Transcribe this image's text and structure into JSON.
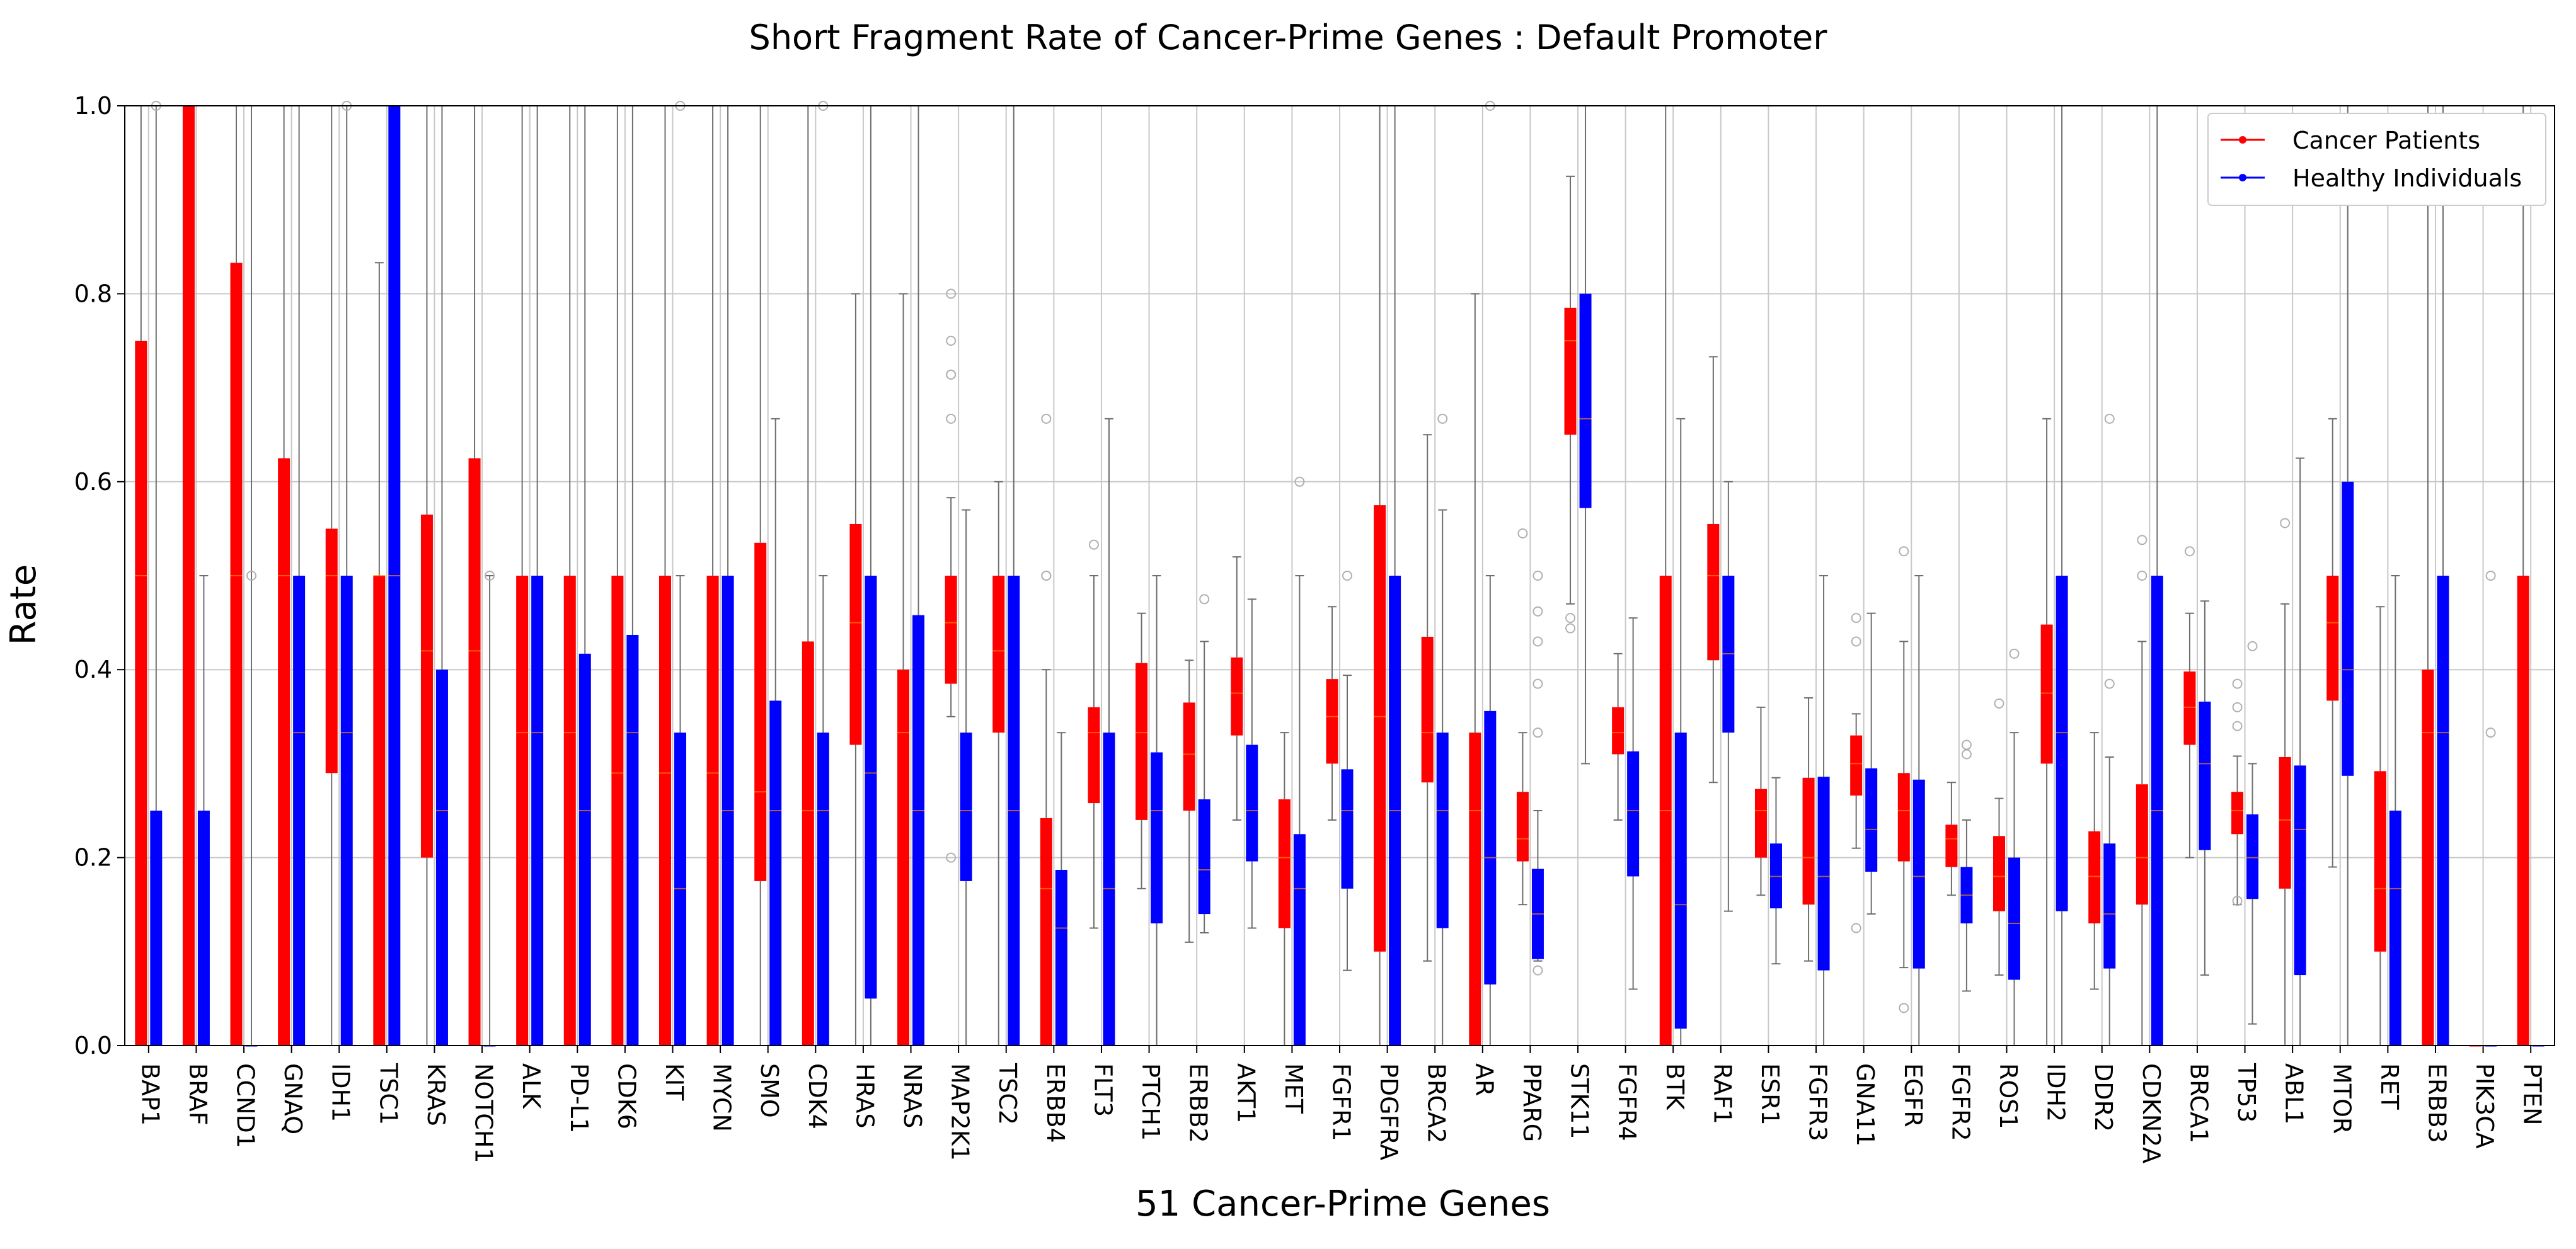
{
  "chart_data": {
    "type": "box",
    "title": "Short Fragment Rate of Cancer-Prime Genes : Default Promoter",
    "xlabel": "51 Cancer-Prime Genes",
    "ylabel": "Rate",
    "ylim": [
      0,
      1.0
    ],
    "yticks": [
      "0.0",
      "0.2",
      "0.4",
      "0.6",
      "0.8",
      "1.0"
    ],
    "grid": true,
    "legend_position": "top-right",
    "series": [
      {
        "name": "Cancer Patients",
        "color": "#ff0000"
      },
      {
        "name": "Healthy Individuals",
        "color": "#0000ff"
      }
    ],
    "categories": [
      "BAP1",
      "BRAF",
      "CCND1",
      "GNAQ",
      "IDH1",
      "TSC1",
      "KRAS",
      "NOTCH1",
      "ALK",
      "PD-L1",
      "CDK6",
      "KIT",
      "MYCN",
      "SMO",
      "CDK4",
      "HRAS",
      "NRAS",
      "MAP2K1",
      "TSC2",
      "ERBB4",
      "FLT3",
      "PTCH1",
      "ERBB2",
      "AKT1",
      "MET",
      "FGFR1",
      "PDGFRA",
      "BRCA2",
      "AR",
      "PPARG",
      "STK11",
      "FGFR4",
      "BTK",
      "RAF1",
      "ESR1",
      "FGFR3",
      "GNA11",
      "EGFR",
      "FGFR2",
      "ROS1",
      "IDH2",
      "DDR2",
      "CDKN2A",
      "BRCA1",
      "TP53",
      "ABL1",
      "MTOR",
      "RET",
      "ERBB3",
      "PIK3CA",
      "PTEN"
    ],
    "boxes": [
      {
        "cancer": [
          0,
          0,
          0.5,
          0.75,
          1.0
        ],
        "healthy": [
          0,
          0,
          0,
          0.25,
          1.0
        ]
      },
      {
        "cancer": [
          0,
          0,
          1.0,
          1.0,
          1.0
        ],
        "healthy": [
          0,
          0,
          0,
          0.25,
          0.5
        ]
      },
      {
        "cancer": [
          0,
          0,
          0.5,
          0.833,
          1.0
        ],
        "healthy": [
          0,
          0,
          0,
          0,
          1.0
        ]
      },
      {
        "cancer": [
          0,
          0,
          0.5,
          0.625,
          1.0
        ],
        "healthy": [
          0,
          0,
          0.333,
          0.5,
          1.0
        ]
      },
      {
        "cancer": [
          0,
          0.29,
          0.5,
          0.55,
          1.0
        ],
        "healthy": [
          0,
          0,
          0.333,
          0.5,
          1.0
        ]
      },
      {
        "cancer": [
          0,
          0,
          0.5,
          0.5,
          0.833
        ],
        "healthy": [
          0,
          0,
          0.5,
          1.0,
          1.0
        ]
      },
      {
        "cancer": [
          0,
          0.2,
          0.42,
          0.565,
          1.0
        ],
        "healthy": [
          0,
          0,
          0.25,
          0.4,
          1.0
        ]
      },
      {
        "cancer": [
          0,
          0,
          0.42,
          0.625,
          1.0
        ],
        "healthy": [
          0,
          0,
          0,
          0,
          0.5
        ]
      },
      {
        "cancer": [
          0,
          0,
          0.333,
          0.5,
          1.0
        ],
        "healthy": [
          0,
          0,
          0.333,
          0.5,
          1.0
        ]
      },
      {
        "cancer": [
          0,
          0,
          0.333,
          0.5,
          1.0
        ],
        "healthy": [
          0,
          0,
          0.25,
          0.417,
          1.0
        ]
      },
      {
        "cancer": [
          0,
          0,
          0.29,
          0.5,
          1.0
        ],
        "healthy": [
          0,
          0,
          0.333,
          0.437,
          1.0
        ]
      },
      {
        "cancer": [
          0,
          0,
          0.29,
          0.5,
          1.0
        ],
        "healthy": [
          0,
          0,
          0.167,
          0.333,
          0.5
        ]
      },
      {
        "cancer": [
          0,
          0,
          0.29,
          0.5,
          1.0
        ],
        "healthy": [
          0,
          0,
          0.25,
          0.5,
          1.0
        ]
      },
      {
        "cancer": [
          0,
          0.175,
          0.27,
          0.535,
          1.0
        ],
        "healthy": [
          0,
          0,
          0.25,
          0.367,
          0.667
        ]
      },
      {
        "cancer": [
          0,
          0,
          0.25,
          0.43,
          1.0
        ],
        "healthy": [
          0,
          0,
          0.25,
          0.333,
          0.5
        ]
      },
      {
        "cancer": [
          0,
          0.32,
          0.45,
          0.555,
          0.8
        ],
        "healthy": [
          0,
          0.05,
          0.29,
          0.5,
          1.0
        ]
      },
      {
        "cancer": [
          0,
          0,
          0.333,
          0.4,
          0.8
        ],
        "healthy": [
          0,
          0,
          0.25,
          0.458,
          1.0
        ]
      },
      {
        "cancer": [
          0.35,
          0.385,
          0.45,
          0.5,
          0.583
        ],
        "healthy": [
          0,
          0.175,
          0.25,
          0.333,
          0.57
        ]
      },
      {
        "cancer": [
          0,
          0.333,
          0.42,
          0.5,
          0.6
        ],
        "healthy": [
          0,
          0,
          0.25,
          0.5,
          1.0
        ]
      },
      {
        "cancer": [
          0,
          0,
          0.167,
          0.242,
          0.4
        ],
        "healthy": [
          0,
          0,
          0.125,
          0.187,
          0.333
        ]
      },
      {
        "cancer": [
          0.125,
          0.258,
          0.333,
          0.36,
          0.5
        ],
        "healthy": [
          0,
          0,
          0.167,
          0.333,
          0.667
        ]
      },
      {
        "cancer": [
          0.167,
          0.24,
          0.333,
          0.407,
          0.46
        ],
        "healthy": [
          0,
          0.13,
          0.25,
          0.312,
          0.5
        ]
      },
      {
        "cancer": [
          0.11,
          0.25,
          0.31,
          0.365,
          0.41
        ],
        "healthy": [
          0.12,
          0.14,
          0.187,
          0.262,
          0.43
        ]
      },
      {
        "cancer": [
          0.24,
          0.33,
          0.375,
          0.413,
          0.52
        ],
        "healthy": [
          0.125,
          0.196,
          0.25,
          0.32,
          0.475
        ]
      },
      {
        "cancer": [
          0,
          0.125,
          0.2,
          0.262,
          0.333
        ],
        "healthy": [
          0,
          0,
          0.167,
          0.225,
          0.5
        ]
      },
      {
        "cancer": [
          0.24,
          0.3,
          0.35,
          0.39,
          0.467
        ],
        "healthy": [
          0.08,
          0.167,
          0.25,
          0.294,
          0.394
        ]
      },
      {
        "cancer": [
          0,
          0.1,
          0.35,
          0.575,
          1.0
        ],
        "healthy": [
          0,
          0,
          0.25,
          0.5,
          1.0
        ]
      },
      {
        "cancer": [
          0.09,
          0.28,
          0.333,
          0.435,
          0.65
        ],
        "healthy": [
          0,
          0.125,
          0.25,
          0.333,
          0.57
        ]
      },
      {
        "cancer": [
          0,
          0,
          0.25,
          0.333,
          0.8
        ],
        "healthy": [
          0,
          0.065,
          0.2,
          0.356,
          0.5
        ]
      },
      {
        "cancer": [
          0.15,
          0.196,
          0.22,
          0.27,
          0.333
        ],
        "healthy": [
          0.09,
          0.092,
          0.14,
          0.188,
          0.25
        ]
      },
      {
        "cancer": [
          0.47,
          0.65,
          0.75,
          0.785,
          0.925
        ],
        "healthy": [
          0.3,
          0.572,
          0.667,
          0.8,
          1.0
        ]
      },
      {
        "cancer": [
          0.24,
          0.31,
          0.333,
          0.36,
          0.417
        ],
        "healthy": [
          0.06,
          0.18,
          0.25,
          0.313,
          0.455
        ]
      },
      {
        "cancer": [
          0,
          0,
          0.25,
          0.5,
          1.0
        ],
        "healthy": [
          0,
          0.018,
          0.15,
          0.333,
          0.667
        ]
      },
      {
        "cancer": [
          0.28,
          0.41,
          0.5,
          0.555,
          0.733
        ],
        "healthy": [
          0.143,
          0.333,
          0.417,
          0.5,
          0.6
        ]
      },
      {
        "cancer": [
          0.16,
          0.2,
          0.25,
          0.273,
          0.36
        ],
        "healthy": [
          0.087,
          0.146,
          0.18,
          0.215,
          0.285
        ]
      },
      {
        "cancer": [
          0.09,
          0.15,
          0.2,
          0.285,
          0.37
        ],
        "healthy": [
          0,
          0.08,
          0.18,
          0.286,
          0.5
        ]
      },
      {
        "cancer": [
          0.21,
          0.266,
          0.3,
          0.33,
          0.353
        ],
        "healthy": [
          0.14,
          0.185,
          0.23,
          0.295,
          0.46
        ]
      },
      {
        "cancer": [
          0.083,
          0.196,
          0.25,
          0.29,
          0.43
        ],
        "healthy": [
          0,
          0.082,
          0.18,
          0.283,
          0.5
        ]
      },
      {
        "cancer": [
          0.16,
          0.19,
          0.22,
          0.235,
          0.28
        ],
        "healthy": [
          0.058,
          0.13,
          0.16,
          0.19,
          0.24
        ]
      },
      {
        "cancer": [
          0.075,
          0.143,
          0.18,
          0.223,
          0.263
        ],
        "healthy": [
          0,
          0.07,
          0.13,
          0.2,
          0.333
        ]
      },
      {
        "cancer": [
          0,
          0.3,
          0.375,
          0.448,
          0.667
        ],
        "healthy": [
          0,
          0.143,
          0.333,
          0.5,
          1.0
        ]
      },
      {
        "cancer": [
          0.06,
          0.13,
          0.18,
          0.228,
          0.333
        ],
        "healthy": [
          0,
          0.082,
          0.14,
          0.215,
          0.307
        ]
      },
      {
        "cancer": [
          0,
          0.15,
          0.2,
          0.278,
          0.43
        ],
        "healthy": [
          0,
          0,
          0.25,
          0.5,
          1.0
        ]
      },
      {
        "cancer": [
          0.2,
          0.32,
          0.36,
          0.398,
          0.46
        ],
        "healthy": [
          0.075,
          0.208,
          0.3,
          0.366,
          0.473
        ]
      },
      {
        "cancer": [
          0.15,
          0.225,
          0.25,
          0.27,
          0.308
        ],
        "healthy": [
          0.023,
          0.156,
          0.2,
          0.246,
          0.3
        ]
      },
      {
        "cancer": [
          0,
          0.167,
          0.24,
          0.307,
          0.47
        ],
        "healthy": [
          0,
          0.075,
          0.23,
          0.298,
          0.625
        ]
      },
      {
        "cancer": [
          0.19,
          0.367,
          0.45,
          0.5,
          0.667
        ],
        "healthy": [
          0,
          0.287,
          0.4,
          0.6,
          1.0
        ]
      },
      {
        "cancer": [
          0,
          0.1,
          0.167,
          0.292,
          0.467
        ],
        "healthy": [
          0,
          0,
          0.167,
          0.25,
          0.5
        ]
      },
      {
        "cancer": [
          0,
          0,
          0.333,
          0.4,
          1.0
        ],
        "healthy": [
          0,
          0,
          0.333,
          0.5,
          1.0
        ]
      },
      {
        "cancer": [
          0,
          0,
          0,
          0,
          0
        ],
        "healthy": [
          0,
          0,
          0,
          0,
          0
        ]
      },
      {
        "cancer": [
          0,
          0,
          0,
          0.5,
          1.0
        ],
        "healthy": [
          0,
          0,
          0,
          0,
          0
        ]
      }
    ],
    "outliers": [
      {
        "category": "BAP1",
        "series": "Healthy Individuals",
        "values": [
          1.0
        ]
      },
      {
        "category": "CCND1",
        "series": "Healthy Individuals",
        "values": [
          0.5
        ]
      },
      {
        "category": "IDH1",
        "series": "Healthy Individuals",
        "values": [
          1.0
        ]
      },
      {
        "category": "NOTCH1",
        "series": "Healthy Individuals",
        "values": [
          0.5
        ]
      },
      {
        "category": "KIT",
        "series": "Healthy Individuals",
        "values": [
          1.0
        ]
      },
      {
        "category": "CDK4",
        "series": "Healthy Individuals",
        "values": [
          1.0
        ]
      },
      {
        "category": "MAP2K1",
        "series": "Cancer Patients",
        "values": [
          0.8,
          0.75,
          0.714,
          0.714,
          0.667,
          0.2
        ]
      },
      {
        "category": "ERBB4",
        "series": "Cancer Patients",
        "values": [
          0.667,
          0.5,
          0.5
        ]
      },
      {
        "category": "FLT3",
        "series": "Cancer Patients",
        "values": [
          0.533
        ]
      },
      {
        "category": "ERBB2",
        "series": "Healthy Individuals",
        "values": [
          0.475
        ]
      },
      {
        "category": "MET",
        "series": "Healthy Individuals",
        "values": [
          0.6
        ]
      },
      {
        "category": "FGFR1",
        "series": "Healthy Individuals",
        "values": [
          0.5
        ]
      },
      {
        "category": "BRCA2",
        "series": "Healthy Individuals",
        "values": [
          0.667
        ]
      },
      {
        "category": "AR",
        "series": "Healthy Individuals",
        "values": [
          1.0
        ]
      },
      {
        "category": "PPARG",
        "series": "Cancer Patients",
        "values": [
          0.545
        ]
      },
      {
        "category": "PPARG",
        "series": "Healthy Individuals",
        "values": [
          0.5,
          0.462,
          0.43,
          0.385,
          0.333,
          0.08
        ]
      },
      {
        "category": "STK11",
        "series": "Cancer Patients",
        "values": [
          0.455,
          0.444
        ]
      },
      {
        "category": "GNA11",
        "series": "Cancer Patients",
        "values": [
          0.455,
          0.43,
          0.125
        ]
      },
      {
        "category": "EGFR",
        "series": "Cancer Patients",
        "values": [
          0.526,
          0.04
        ]
      },
      {
        "category": "FGFR2",
        "series": "Healthy Individuals",
        "values": [
          0.32,
          0.31
        ]
      },
      {
        "category": "ROS1",
        "series": "Cancer Patients",
        "values": [
          0.364
        ]
      },
      {
        "category": "ROS1",
        "series": "Healthy Individuals",
        "values": [
          0.417
        ]
      },
      {
        "category": "DDR2",
        "series": "Healthy Individuals",
        "values": [
          0.667,
          0.385
        ]
      },
      {
        "category": "CDKN2A",
        "series": "Cancer Patients",
        "values": [
          0.538,
          0.5
        ]
      },
      {
        "category": "BRCA1",
        "series": "Cancer Patients",
        "values": [
          0.526
        ]
      },
      {
        "category": "TP53",
        "series": "Cancer Patients",
        "values": [
          0.385,
          0.36,
          0.34,
          0.154
        ]
      },
      {
        "category": "TP53",
        "series": "Healthy Individuals",
        "values": [
          0.425
        ]
      },
      {
        "category": "ABL1",
        "series": "Cancer Patients",
        "values": [
          0.556
        ]
      },
      {
        "category": "PIK3CA",
        "series": "Healthy Individuals",
        "values": [
          0.5,
          0.333
        ]
      }
    ]
  }
}
